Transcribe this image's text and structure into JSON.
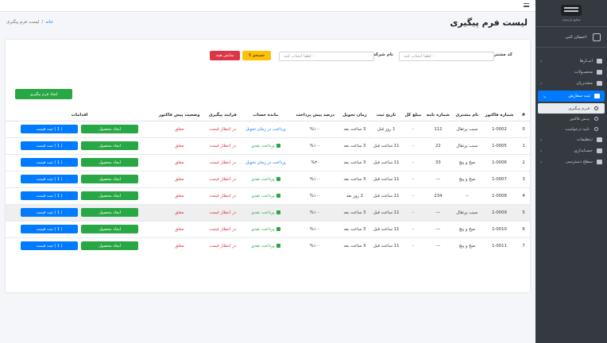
{
  "topbar": {
    "menu_icon": "hamburger-icon"
  },
  "sidebar": {
    "brand_name": "صنایع پارسیان",
    "user_name": "احسان اثنی",
    "items": [
      {
        "label": "انبــارها",
        "icon": "truck-icon",
        "chevron": "‹"
      },
      {
        "label": "محصـولات",
        "icon": "cart-icon",
        "chevron": ""
      },
      {
        "label": "مشتـریان",
        "icon": "user-icon",
        "chevron": "‹"
      },
      {
        "label": "ثبت سفارش",
        "icon": "cart-icon",
        "chevron": "⌄",
        "active": true
      }
    ],
    "sub_items": [
      {
        "label": "فـرم پیـگیری",
        "active": true
      },
      {
        "label": "پیـش فاکتور",
        "active": false
      },
      {
        "label": "تایید درخواست",
        "active": false
      }
    ],
    "items2": [
      {
        "label": "تـنظیمات",
        "icon": "gears-icon",
        "chevron": "‹"
      },
      {
        "label": "حسـابداری",
        "icon": "dollar-icon",
        "chevron": "‹"
      },
      {
        "label": "سطح دسترسی",
        "icon": "lock-icon",
        "chevron": "‹"
      }
    ]
  },
  "header": {
    "title": "لیست فرم پیگیری"
  },
  "breadcrumb": {
    "home": "خانه",
    "sep": "/",
    "current": "لیست فرم پیگیری"
  },
  "filters": {
    "customer_label": "کد مشتری :",
    "customer_placeholder": "- لطفا انتخاب کنید",
    "company_label": "نام شرکت :",
    "company_placeholder": "- لطفا انتخاب کنید",
    "search_label": "جستجو",
    "show_all_label": "نمایش همه"
  },
  "create_button": "ایجاد فرم پیگیری",
  "table": {
    "headers": [
      "#",
      "شماره فاکتور",
      "نام مشتری",
      "شماره نامه",
      "مبلغ کل",
      "تاریخ ثبت",
      "زمان تحویل",
      "درصد پیش پرداخت",
      "مانده حساب",
      "فرایند پیگیری",
      "وضعیت پیش فاکتور",
      "اقدامات"
    ],
    "rows": [
      {
        "num": "0",
        "invoice": "1-0002",
        "customer": "سیب پرتقال",
        "letter": "112",
        "total": "-",
        "registered": "1 روز قبل",
        "delivery": "3 ساعت بعد",
        "prepay": "١٠٠%",
        "balance": "پرداخت در زمان تحویل",
        "balance_type": "blue",
        "process": "در انتظار قیمت",
        "status": "معلق",
        "act1": "ایجاد محصول",
        "act2": "( 1 ) ثبت قیمت"
      },
      {
        "num": "1",
        "invoice": "1-0005",
        "customer": "سیب پرتقال",
        "letter": "22",
        "total": "-",
        "registered": "11 ساعت قبل",
        "delivery": "3 ساعت بعد",
        "prepay": "١٠٠%",
        "balance": "پرداخت نقدی",
        "balance_type": "green",
        "process": "در انتظار قیمت",
        "status": "معلق",
        "act1": "ایجاد محصول",
        "act2": "( 1 ) ثبت قیمت"
      },
      {
        "num": "2",
        "invoice": "1-0006",
        "customer": "میخ و پیچ",
        "letter": "33",
        "total": "-",
        "registered": "11 ساعت قبل",
        "delivery": "3 ساعت بعد",
        "prepay": "٣٠%",
        "balance": "پرداخت در زمان تحویل",
        "balance_type": "blue",
        "process": "در انتظار قیمت",
        "status": "معلق",
        "act1": "ایجاد محصول",
        "act2": "( 1 ) ثبت قیمت"
      },
      {
        "num": "3",
        "invoice": "1-0007",
        "customer": "میخ و پیچ",
        "letter": "---",
        "total": "-",
        "registered": "11 ساعت قبل",
        "delivery": "3 ساعت بعد",
        "prepay": "١٠٠%",
        "balance": "پرداخت نقدی",
        "balance_type": "green",
        "process": "در انتظار قیمت",
        "status": "معلق",
        "act1": "ایجاد محصول",
        "act2": "( 1 ) ثبت قیمت"
      },
      {
        "num": "4",
        "invoice": "1-0008",
        "customer": "--",
        "letter": "234",
        "total": "-",
        "registered": "11 ساعت قبل",
        "delivery": "2 روز بعد",
        "prepay": "١٠٠%",
        "balance": "پرداخت نقدی",
        "balance_type": "green",
        "process": "در انتظار قیمت",
        "status": "معلق",
        "act1": "ایجاد محصول",
        "act2": "( 1 ) ثبت قیمت"
      },
      {
        "num": "5",
        "invoice": "1-0009",
        "customer": "سیب پرتقال",
        "letter": "---",
        "total": "-",
        "registered": "11 ساعت قبل",
        "delivery": "3 ساعت بعد",
        "prepay": "١٠٠%",
        "balance": "پرداخت نقدی",
        "balance_type": "green",
        "process": "در انتظار قیمت",
        "status": "معلق",
        "act1": "ایجاد محصول",
        "act2": "( 1 ) ثبت قیمت",
        "highlight": true
      },
      {
        "num": "6",
        "invoice": "1-0010",
        "customer": "میخ و پیچ",
        "letter": "---",
        "total": "-",
        "registered": "11 ساعت قبل",
        "delivery": "3 ساعت بعد",
        "prepay": "١٠٠%",
        "balance": "پرداخت نقدی",
        "balance_type": "green",
        "process": "در انتظار قیمت",
        "status": "معلق",
        "act1": "ایجاد محصول",
        "act2": "( 1 ) ثبت قیمت"
      },
      {
        "num": "7",
        "invoice": "1-0011",
        "customer": "میخ و پیچ",
        "letter": "---",
        "total": "-",
        "registered": "11 ساعت قبل",
        "delivery": "3 ساعت بعد",
        "prepay": "١٠٠%",
        "balance": "پرداخت نقدی",
        "balance_type": "green",
        "process": "در انتظار قیمت",
        "status": "معلق",
        "act1": "ایجاد محصول",
        "act2": "( 1 ) ثبت قیمت"
      }
    ]
  },
  "colors": {
    "sidebar_bg": "#343a40",
    "primary": "#007bff",
    "success": "#28a745",
    "danger": "#dc3545",
    "warning": "#ffc107"
  }
}
